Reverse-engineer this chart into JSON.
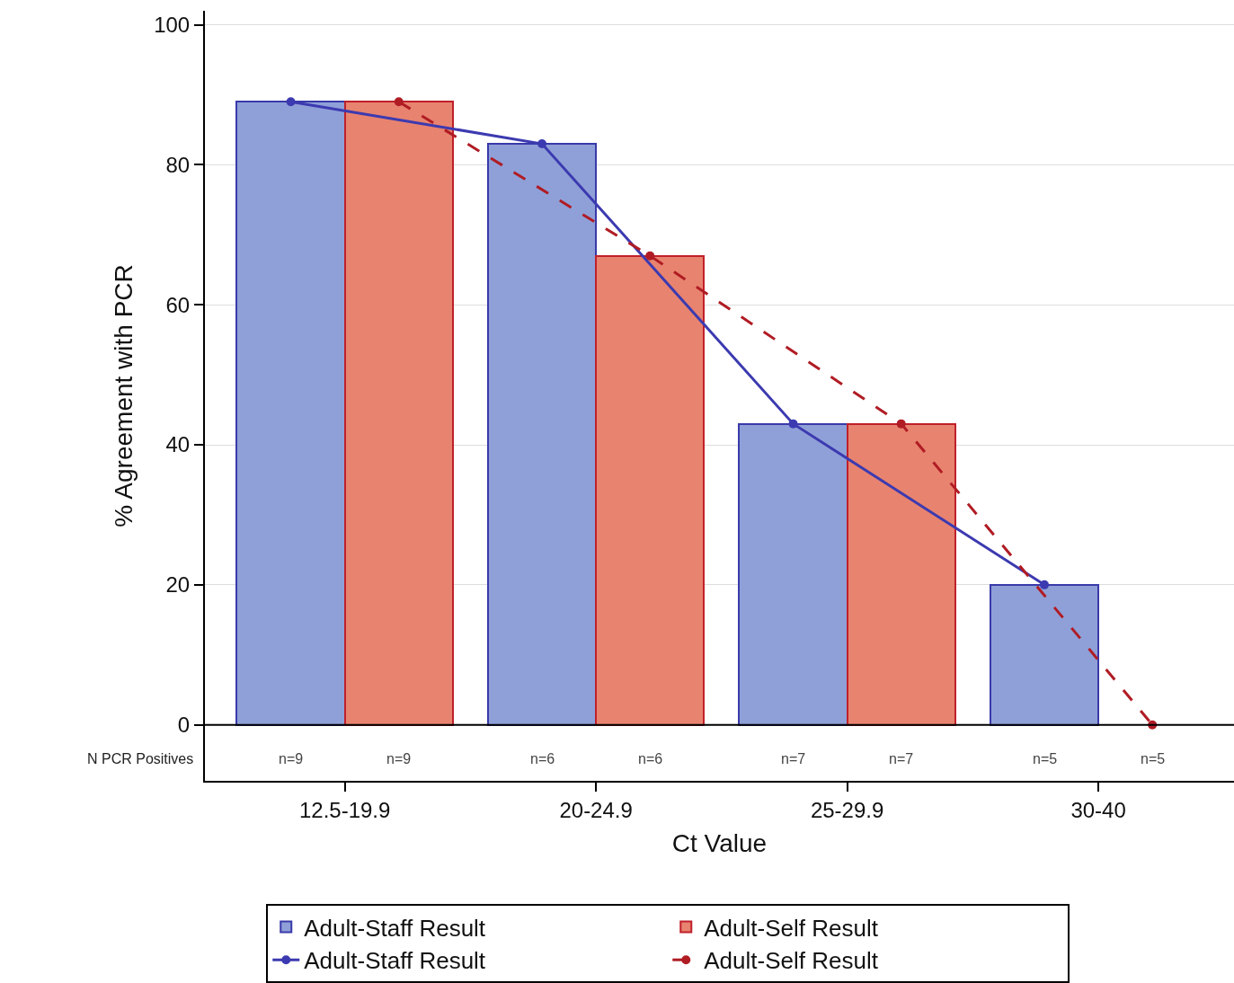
{
  "chart_data": {
    "type": "bar",
    "xlabel": "Ct Value",
    "ylabel": "% Agreement with PCR",
    "categories": [
      "12.5-19.9",
      "20-24.9",
      "25-29.9",
      "30-40"
    ],
    "series": [
      {
        "name": "Adult-Staff Result",
        "color": "#8fa0d8",
        "values": [
          89,
          83,
          43,
          20
        ]
      },
      {
        "name": "Adult-Self Result",
        "color": "#e8836f",
        "values": [
          89,
          67,
          43,
          0
        ]
      },
      {
        "name": "Adult-Staff Result",
        "type": "line",
        "color": "#3c3ab0",
        "line_style": "solid",
        "marker": "circle",
        "values": [
          89,
          83,
          43,
          20
        ]
      },
      {
        "name": "Adult-Self Result",
        "type": "line",
        "color": "#b01c24",
        "line_style": "dashed",
        "marker": "circle",
        "values": [
          89,
          67,
          43,
          0
        ]
      }
    ],
    "ylim": [
      -8,
      102
    ],
    "yticks": [
      0,
      20,
      40,
      60,
      80,
      100
    ],
    "grid": "y",
    "legend": "bottom",
    "ref_lines": [
      {
        "axis": "y",
        "value": 0,
        "color": "#000000"
      }
    ],
    "annotations": [
      "N PCR Positives",
      "n=9",
      "n=9",
      "n=6",
      "n=6",
      "n=7",
      "n=7",
      "n=5",
      "n=5"
    ]
  }
}
